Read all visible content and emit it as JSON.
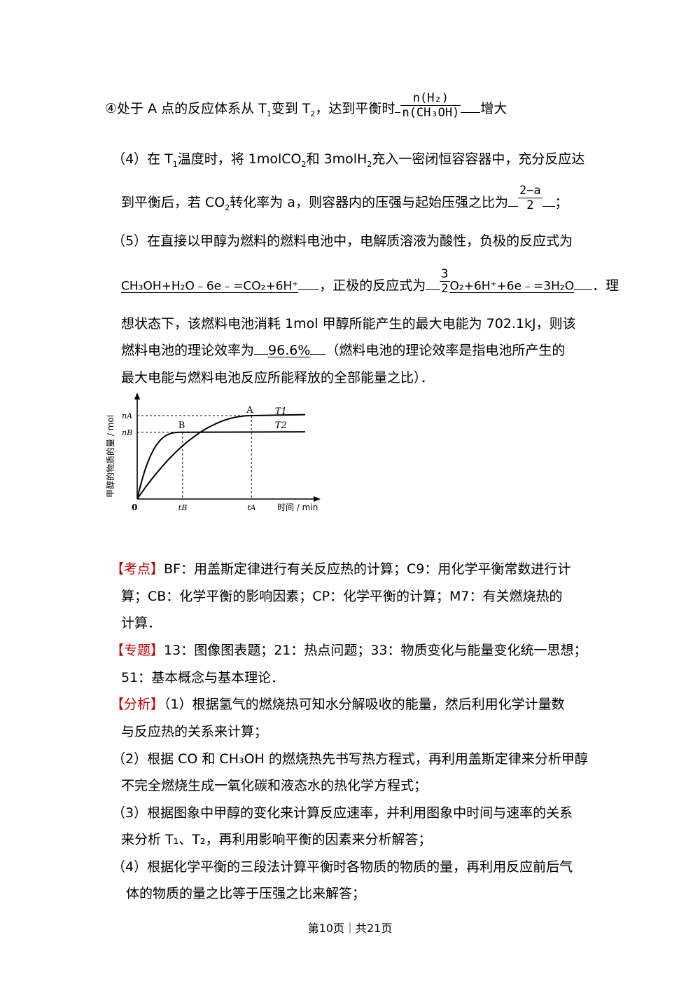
{
  "q4_line": {
    "prefix": "④处于 A 点的反应体系从 T",
    "t1": "1",
    "mid": "变到 T",
    "t2": "2",
    "after": "，达到平衡时",
    "frac_num": "n(H₂)",
    "frac_den": "n(CH₃OH)",
    "suffix": "增大"
  },
  "p4": {
    "l1a": "（4）在 T",
    "l1b": "1",
    "l1c": "温度时，将 1molCO",
    "l1d": "2",
    "l1e": "和 3molH",
    "l1f": "2",
    "l1g": "充入一密闭恒容容器中，充分反应达",
    "l2a": "到平衡后，若 CO",
    "l2b": "2",
    "l2c": "转化率为 a，则容器内的压强与起始压强之比为",
    "frac_num": "2−a",
    "frac_den": "2",
    "l2end": "；"
  },
  "p5": {
    "l1": "（5）在直接以甲醇为燃料的燃料电池中，电解质溶液为酸性，负极的反应式为",
    "anode": "CH₃OH+H₂O﹣6e﹣=CO₂+6H⁺",
    "mid": "，正极的反应式为",
    "frac_num": "3",
    "frac_den": "2",
    "cathode": "O₂+6H⁺+6e﹣=3H₂O",
    "end": "．理",
    "l3": "想状态下，该燃料电池消耗 1mol 甲醇所能产生的最大电能为 702.1kJ，则该",
    "l4a": "燃料电池的理论效率为",
    "efficiency": "96.6%",
    "l4b": "（燃料电池的理论效率是指电池所产生的",
    "l5": "最大电能与燃料电池反应所能释放的全部能量之比）．"
  },
  "chart_data": {
    "type": "line",
    "ylabel": "甲醇的物质的量 / mol",
    "xlabel": "时间 / min",
    "origin": "0",
    "y_ticks": [
      "nA",
      "nB"
    ],
    "x_ticks": [
      "tB",
      "tA"
    ],
    "points": [
      "A",
      "B"
    ],
    "series": [
      {
        "name": "T1",
        "plateau_label": "nA",
        "reach_time_label": "tA"
      },
      {
        "name": "T2",
        "plateau_label": "nB",
        "reach_time_label": "tB"
      }
    ],
    "y_values": {
      "nA": 0.85,
      "nB": 0.68
    },
    "x_values": {
      "tB": 0.27,
      "tA": 0.68
    },
    "grid": false
  },
  "analysis": {
    "kaodian_tag": "【考点】",
    "kaodian_1": "BF：用盖斯定律进行有关反应热的计算；C9：用化学平衡常数进行计",
    "kaodian_2": "算；CB：化学平衡的影响因素；CP：化学平衡的计算；M7：有关燃烧热的",
    "kaodian_3": "计算．",
    "zhuanti_tag": "【专题】",
    "zhuanti_1": "13：图像图表题；21：热点问题；33：物质变化与能量变化统一思想；",
    "zhuanti_2": "51：基本概念与基本理论．",
    "fenxi_tag": "【分析】",
    "fenxi_1": "（1）根据氢气的燃烧热可知水分解吸收的能量，然后利用化学计量数",
    "fenxi_2": "与反应热的关系来计算；",
    "fenxi_3": "（2）根据 CO 和 CH₃OH 的燃烧热先书写热方程式，再利用盖斯定律来分析甲醇",
    "fenxi_4": "不完全燃烧生成一氧化碳和液态水的热化学方程式；",
    "fenxi_5": "（3）根据图象中甲醇的变化来计算反应速率，并利用图象中时间与速率的关系",
    "fenxi_6": "来分析 T₁、T₂，再利用影响平衡的因素来分析解答；",
    "fenxi_7": "（4）根据化学平衡的三段法计算平衡时各物质的物质的量，再利用反应前后气",
    "fenxi_8": "体的物质的量之比等于压强之比来解答；"
  },
  "footer": "第10页｜共21页"
}
